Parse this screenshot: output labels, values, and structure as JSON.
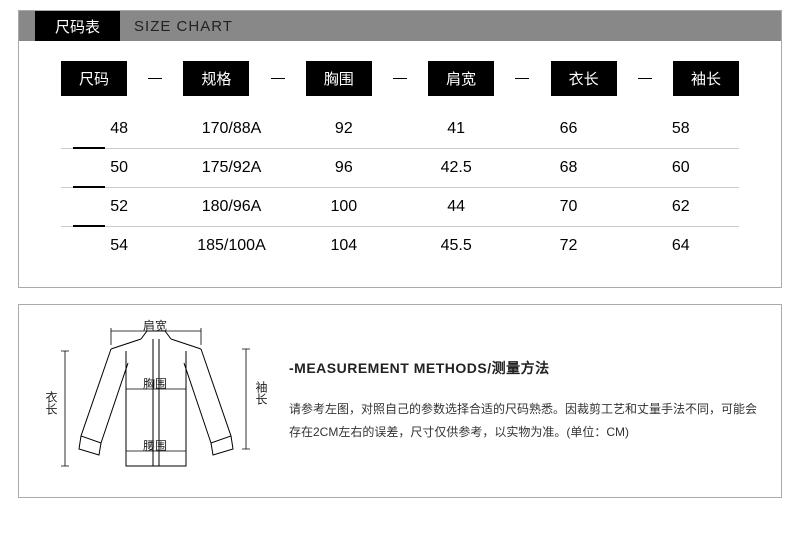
{
  "sizeChart": {
    "tab_cn": "尺码表",
    "tab_en": "SIZE CHART",
    "columns": [
      "尺码",
      "规格",
      "胸围",
      "肩宽",
      "衣长",
      "袖长"
    ],
    "rows": [
      [
        "48",
        "170/88A",
        "92",
        "41",
        "66",
        "58"
      ],
      [
        "50",
        "175/92A",
        "96",
        "42.5",
        "68",
        "60"
      ],
      [
        "52",
        "180/96A",
        "100",
        "44",
        "70",
        "62"
      ],
      [
        "54",
        "185/100A",
        "104",
        "45.5",
        "72",
        "64"
      ]
    ],
    "header_bg": "#000000",
    "header_fg": "#ffffff",
    "titlebar_bg": "#888888",
    "border_color": "#aaaaaa",
    "divider_color": "#cccccc",
    "font_size_body": 16
  },
  "measurement": {
    "title": "-MEASUREMENT METHODS/测量方法",
    "body": "请参考左图，对照自己的参数选择合适的尺码熟悉。因裁剪工艺和丈量手法不同，可能会存在2CM左右的误差，尺寸仅供参考，以实物为准。(单位：CM)",
    "labels": {
      "shoulder": "肩宽",
      "chest": "胸围",
      "waist": "腰围",
      "length": "衣长",
      "sleeve": "袖长"
    }
  }
}
